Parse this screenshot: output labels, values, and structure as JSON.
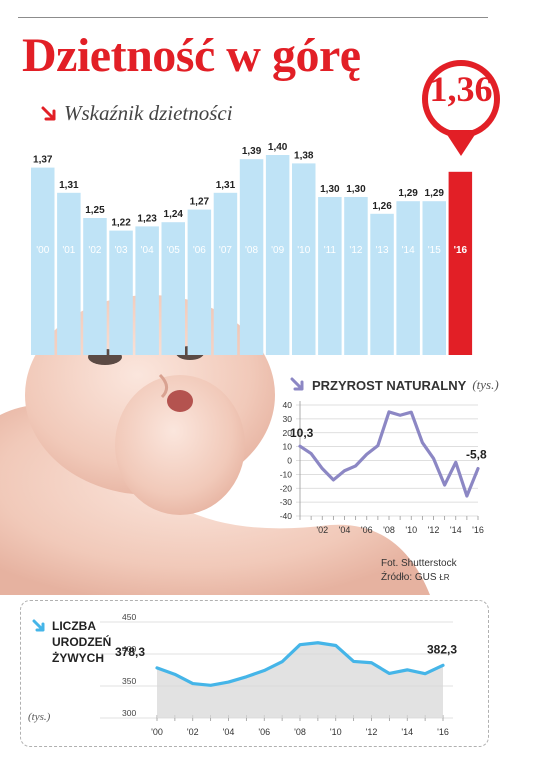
{
  "headline": "Dzietność w górę",
  "fertility": {
    "title": "Wskaźnik dzietności",
    "highlight_value": "1,36",
    "highlight_color": "#e21f26",
    "bar_color": "#bfe3f6",
    "chart_data": {
      "type": "bar",
      "categories": [
        "'00",
        "'01",
        "'02",
        "'03",
        "'04",
        "'05",
        "'06",
        "'07",
        "'08",
        "'09",
        "'10",
        "'11",
        "'12",
        "'13",
        "'14",
        "'15",
        "'16"
      ],
      "values": [
        1.37,
        1.31,
        1.25,
        1.22,
        1.23,
        1.24,
        1.27,
        1.31,
        1.39,
        1.4,
        1.38,
        1.3,
        1.3,
        1.26,
        1.29,
        1.29,
        1.36
      ],
      "value_labels": [
        "1,37",
        "1,31",
        "1,25",
        "1,22",
        "1,23",
        "1,24",
        "1,27",
        "1,31",
        "1,39",
        "1,40",
        "1,38",
        "1,30",
        "1,30",
        "1,26",
        "1,29",
        "1,29",
        ""
      ],
      "title": "Wskaźnik dzietności",
      "highlight_index": 16
    }
  },
  "natural_increase": {
    "title": "Przyrost naturalny",
    "unit": "(tys.)",
    "line_color": "#8c87c4",
    "chart_data": {
      "type": "line",
      "x": [
        2000,
        2001,
        2002,
        2003,
        2004,
        2005,
        2006,
        2007,
        2008,
        2009,
        2010,
        2011,
        2012,
        2013,
        2014,
        2015,
        2016
      ],
      "values": [
        10.3,
        5,
        -5.8,
        -14,
        -7.4,
        -3.9,
        4.5,
        10.7,
        35,
        32.6,
        34.8,
        12.9,
        1.5,
        -17.7,
        -1.3,
        -25.6,
        -5.8
      ],
      "ylim": [
        -40,
        40
      ],
      "yticks": [
        "40",
        "30",
        "20",
        "10",
        "0",
        "-10",
        "-20",
        "-30",
        "-40"
      ],
      "xticks": [
        "'02",
        "'04",
        "'06",
        "'08",
        "'10",
        "'12",
        "'14",
        "'16"
      ],
      "start_label": "10,3",
      "end_label": "-5,8"
    }
  },
  "credits": {
    "photo": "Fot. Shutterstock",
    "source": "Źródło: GUS",
    "initials": "ŁR"
  },
  "births": {
    "title_lines": [
      "Liczba",
      "urodzeń",
      "żywych"
    ],
    "unit": "(tys.)",
    "line_color": "#45b5e8",
    "fill_color": "#d8d8d8",
    "chart_data": {
      "type": "area",
      "x": [
        2000,
        2001,
        2002,
        2003,
        2004,
        2005,
        2006,
        2007,
        2008,
        2009,
        2010,
        2011,
        2012,
        2013,
        2014,
        2015,
        2016
      ],
      "values": [
        378.3,
        368.2,
        353.8,
        351.1,
        356.1,
        364.4,
        374.2,
        387.9,
        414.5,
        417.6,
        413.3,
        388.4,
        386.3,
        369.6,
        375.2,
        369.3,
        382.3
      ],
      "ylim": [
        300,
        450
      ],
      "yticks": [
        "450",
        "400",
        "350",
        "300"
      ],
      "xticks": [
        "'00",
        "'02",
        "'04",
        "'06",
        "'08",
        "'10",
        "'12",
        "'14",
        "'16"
      ],
      "start_label": "378,3",
      "end_label": "382,3"
    }
  }
}
